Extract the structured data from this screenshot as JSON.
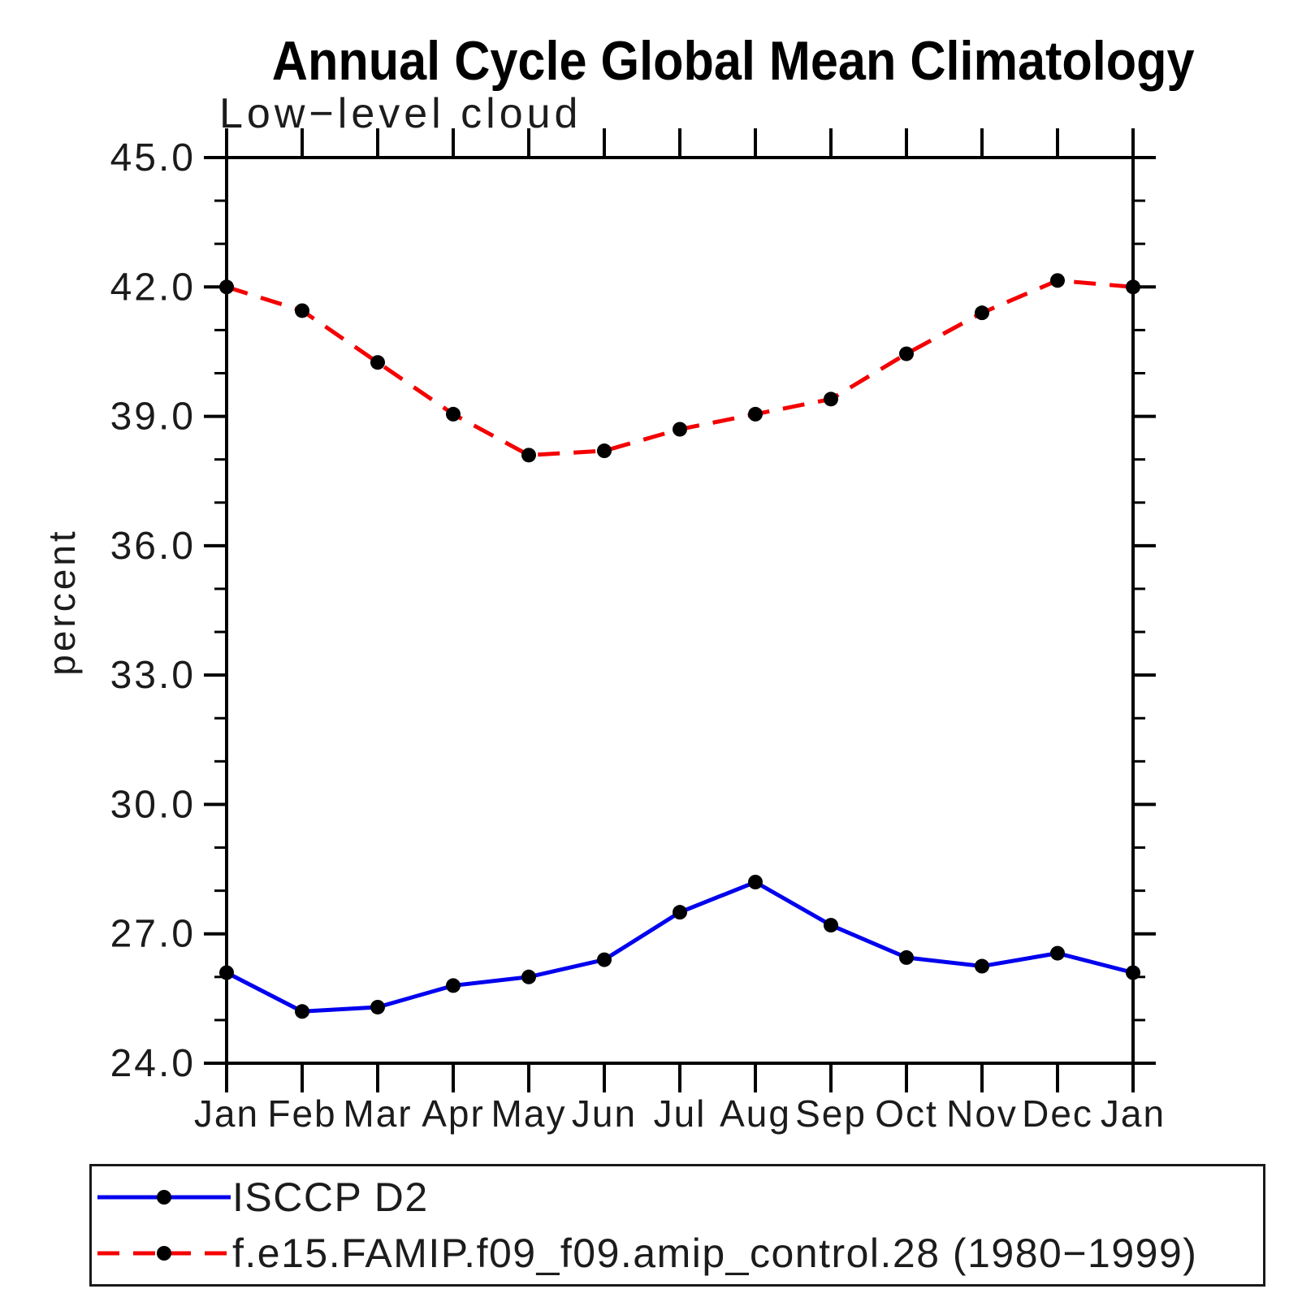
{
  "title": "Annual Cycle Global Mean Climatology",
  "subtitle": "Low−level cloud",
  "y_axis_label": "percent",
  "chart_data": {
    "type": "line",
    "title": "Annual Cycle Global Mean Climatology",
    "subtitle": "Low−level cloud",
    "xlabel": "",
    "ylabel": "percent",
    "categories": [
      "Jan",
      "Feb",
      "Mar",
      "Apr",
      "May",
      "Jun",
      "Jul",
      "Aug",
      "Sep",
      "Oct",
      "Nov",
      "Dec",
      "Jan"
    ],
    "ylim": [
      24.0,
      45.0
    ],
    "ytick_major_step": 3.0,
    "ytick_minor_step": 1.0,
    "ytick_labels": [
      "24.0",
      "27.0",
      "30.0",
      "33.0",
      "36.0",
      "39.0",
      "42.0",
      "45.0"
    ],
    "grid": false,
    "legend_position": "bottom",
    "marker_shape": "filled-circle",
    "marker_color": "#000000",
    "axis_color": "#000000",
    "series": [
      {
        "name": "ISCCP D2",
        "color": "#0000ee",
        "line_style": "solid",
        "values": [
          26.1,
          25.2,
          25.3,
          25.8,
          26.0,
          26.4,
          27.5,
          28.2,
          27.2,
          26.45,
          26.25,
          26.55,
          26.1
        ]
      },
      {
        "name": "f.e15.FAMIP.f09_f09.amip_control.28 (1980−1999)",
        "color": "#f40000",
        "line_style": "dashed",
        "values": [
          42.0,
          41.45,
          40.25,
          39.05,
          38.1,
          38.2,
          38.7,
          39.05,
          39.4,
          40.45,
          41.4,
          42.15,
          42.0
        ]
      }
    ]
  }
}
